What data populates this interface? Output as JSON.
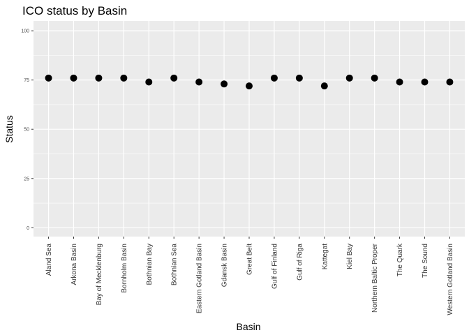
{
  "chart_data": {
    "type": "scatter",
    "title": "ICO status by Basin",
    "xlabel": "Basin",
    "ylabel": "Status",
    "ylim": [
      -4.5,
      105
    ],
    "yticks": [
      0,
      25,
      50,
      75,
      100
    ],
    "ytick_labels": [
      "0",
      "25",
      "50",
      "75",
      "100"
    ],
    "grid": true,
    "categories": [
      "Aland Sea",
      "Arkona Basin",
      "Bay of Mecklenburg",
      "Bornholm Basin",
      "Bothnian Bay",
      "Bothnian Sea",
      "Eastern Gotland Basin",
      "Gdansk Basin",
      "Great Belt",
      "Gulf of Finland",
      "Gulf of Riga",
      "Kattegat",
      "Kiel Bay",
      "Northern Baltic Proper",
      "The Quark",
      "The Sound",
      "Western Gotland Basin"
    ],
    "values": [
      76,
      76,
      76,
      76,
      74,
      76,
      74,
      73,
      72,
      76,
      76,
      72,
      76,
      76,
      74,
      74,
      74
    ]
  },
  "colors": {
    "panel": "#ebebeb",
    "grid_major": "#ffffff",
    "point": "#000000"
  }
}
